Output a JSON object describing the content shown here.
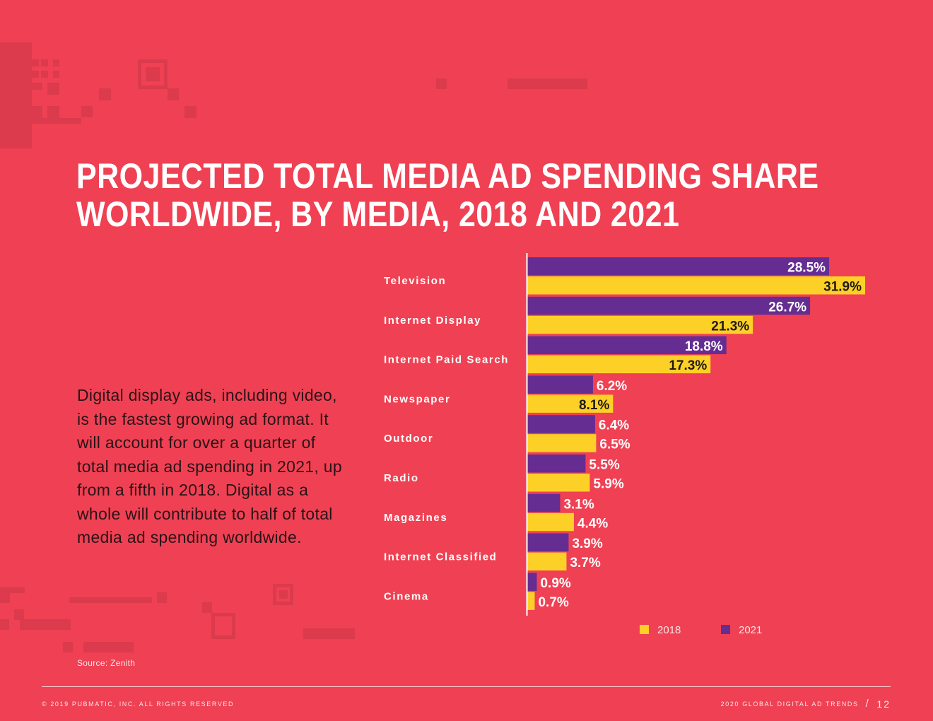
{
  "title_lines": [
    "PROJECTED TOTAL MEDIA AD SPENDING SHARE",
    "WORLDWIDE, BY MEDIA, 2018 AND 2021"
  ],
  "body_text": "Digital display ads, including video, is the fastest growing ad format. It will account for over a quarter of total media ad spending in 2021, up from a fifth in 2018. Digital as a whole will contribute to half of total media ad spending worldwide.",
  "source": "Source: Zenith",
  "footer": {
    "copyright": "© 2019 PUBMATIC, INC. ALL RIGHTS RESERVED",
    "publication": "2020 GLOBAL DIGITAL AD TRENDS",
    "separator": "/",
    "page_number": "12"
  },
  "colors": {
    "background": "#ef4153",
    "series_2018": "#fdd027",
    "series_2021": "#652d92"
  },
  "chart_data": {
    "type": "bar",
    "orientation": "horizontal",
    "title": "Projected Total Media Ad Spending Share Worldwide, by Media, 2018 and 2021",
    "categories": [
      "Television",
      "Internet Display",
      "Internet Paid Search",
      "Newspaper",
      "Outdoor",
      "Radio",
      "Magazines",
      "Internet Classified",
      "Cinema"
    ],
    "series": [
      {
        "name": "2021",
        "color": "#652d92",
        "values": [
          28.5,
          26.7,
          18.8,
          6.2,
          6.4,
          5.5,
          3.1,
          3.9,
          0.9
        ]
      },
      {
        "name": "2018",
        "color": "#fdd027",
        "values": [
          31.9,
          21.3,
          17.3,
          8.1,
          6.5,
          5.9,
          4.4,
          3.7,
          0.7
        ]
      }
    ],
    "value_suffix": "%",
    "xlabel": "",
    "ylabel": "",
    "xlim": [
      0,
      32
    ],
    "grid": false,
    "legend": {
      "position": "bottom-right",
      "order": [
        "2018",
        "2021"
      ]
    }
  }
}
